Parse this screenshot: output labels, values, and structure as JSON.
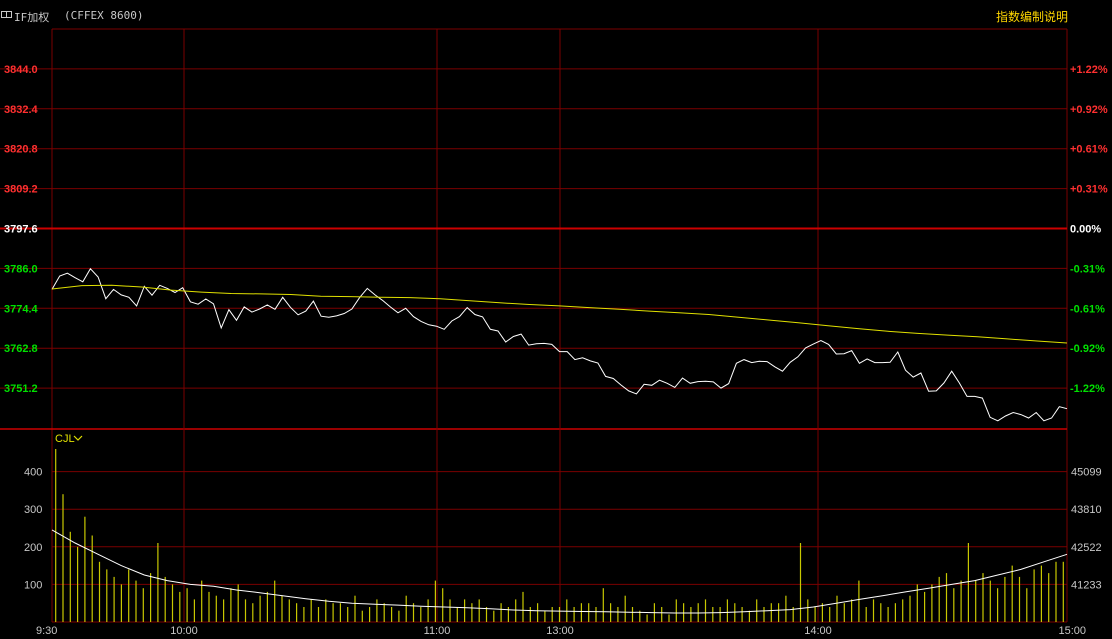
{
  "header": {
    "symbol": "IF加权",
    "exchange": "(CFFEX 8600)",
    "link": "指数编制说明"
  },
  "colors": {
    "up": "#ff3030",
    "down": "#00e000",
    "flat": "#ffffff",
    "grid": "#7a0000",
    "price_line": "#ffffff",
    "avg_line": "#e0e000",
    "volume_bar": "#c8c800",
    "volume_ma": "#ffffff",
    "axis_text": "#c8c8c8"
  },
  "chart_data": [
    {
      "type": "line",
      "x_ticks": [
        "9:30",
        "10:00",
        "11:00",
        "13:00",
        "14:00",
        "15:00"
      ],
      "y_ticks": [
        3844.0,
        3832.4,
        3820.8,
        3809.2,
        3797.6,
        3786.0,
        3774.4,
        3762.8,
        3751.2
      ],
      "y_tick_labels": [
        "3844.0",
        "3832.4",
        "3820.8",
        "3809.2",
        "3797.6",
        "3786.0",
        "3774.4",
        "3762.8",
        "3751.2"
      ],
      "pct_ticks": [
        "+1.22%",
        "+0.92%",
        "+0.61%",
        "+0.31%",
        "0.00%",
        "-0.31%",
        "-0.61%",
        "-0.92%",
        "-1.22%"
      ],
      "base": 3797.6,
      "ylim": [
        3739.6,
        3855.6
      ],
      "grid": true,
      "series": [
        {
          "values": [
            3779.9,
            3783.8,
            3784.6,
            3783.3,
            3782.1,
            3785.9,
            3783.5,
            3777.2,
            3779.9,
            3778.3,
            3777.6,
            3775.1,
            3780.8,
            3778.2,
            3781.1,
            3780.2,
            3779.0,
            3780.4,
            3776.3,
            3775.6,
            3777.1,
            3775.7,
            3768.7,
            3774.0,
            3770.9,
            3774.8,
            3773.3,
            3774.2,
            3775.4,
            3774.1,
            3777.6,
            3774.7,
            3772.5,
            3773.6,
            3776.5,
            3772.1,
            3771.8,
            3772.2,
            3772.9,
            3774.2,
            3777.5,
            3780.2,
            3778.3,
            3776.7,
            3774.8,
            3773.1,
            3774.4,
            3772.0,
            3770.6,
            3769.6,
            3769.2,
            3768.3,
            3770.7,
            3772.0,
            3774.6,
            3772.6,
            3771.9,
            3768.3,
            3767.8,
            3764.6,
            3766.2,
            3766.9,
            3763.7,
            3764.1,
            3764.2,
            3763.9,
            3761.8,
            3761.8,
            3759.5,
            3760.0,
            3759.1,
            3758.5,
            3754.6,
            3754.0,
            3752.1,
            3750.4,
            3749.5,
            3752.3,
            3752.0,
            3753.5,
            3752.6,
            3751.4,
            3754.1,
            3752.6,
            3753.1,
            3753.2,
            3753.0,
            3751.2,
            3752.5,
            3758.4,
            3759.5,
            3758.6,
            3759.0,
            3758.9,
            3757.4,
            3756.1,
            3758.7,
            3760.3,
            3762.9,
            3764.0,
            3765.0,
            3763.9,
            3761.1,
            3761.2,
            3762.1,
            3758.4,
            3759.7,
            3758.6,
            3758.6,
            3758.7,
            3761.7,
            3756.4,
            3754.4,
            3755.6,
            3750.3,
            3750.4,
            3752.7,
            3756.1,
            3752.7,
            3748.8,
            3748.8,
            3748.3,
            3742.7,
            3741.7,
            3743.1,
            3744.1,
            3743.5,
            3742.5,
            3744.1,
            3741.7,
            3742.5,
            3745.8,
            3745.2
          ],
          "note_x": "9:30 to 15:00 (241 minutes)"
        },
        {
          "values": [
            3780.0,
            3781.0,
            3781.1,
            3780.6,
            3779.7,
            3779.1,
            3778.7,
            3778.6,
            3778.4,
            3777.9,
            3777.8,
            3777.6,
            3777.5,
            3777.2,
            3776.6,
            3776.0,
            3775.5,
            3775.1,
            3774.6,
            3774.1,
            3773.6,
            3773.1,
            3772.6,
            3771.8,
            3771.0,
            3770.2,
            3769.3,
            3768.5,
            3767.7,
            3767.1,
            3766.6,
            3766.1,
            3765.5,
            3764.9,
            3764.3
          ]
        }
      ]
    },
    {
      "type": "bar",
      "indicator_label": "CJL",
      "x_ticks": [
        "9:30",
        "10:00",
        "11:00",
        "13:00",
        "14:00",
        "15:00"
      ],
      "y_ticks": [
        400,
        300,
        200,
        100
      ],
      "y_tick_labels": [
        "400",
        "300",
        "200",
        "100"
      ],
      "right_ticks": [
        "45099",
        "43810",
        "42522",
        "41233"
      ],
      "ylim": [
        0,
        500
      ],
      "series": [
        {
          "values": [
            460,
            340,
            240,
            200,
            280,
            230,
            160,
            140,
            120,
            100,
            140,
            110,
            90,
            130,
            210,
            120,
            100,
            80,
            90,
            60,
            110,
            80,
            70,
            60,
            90,
            100,
            60,
            50,
            70,
            80,
            110,
            70,
            60,
            50,
            40,
            60,
            40,
            60,
            50,
            50,
            40,
            70,
            30,
            40,
            60,
            50,
            40,
            30,
            70,
            50,
            40,
            60,
            110,
            90,
            60,
            40,
            60,
            50,
            60,
            40,
            30,
            50,
            40,
            60,
            80,
            40,
            50,
            30,
            40,
            40,
            60,
            40,
            50,
            50,
            40,
            90,
            50,
            40,
            70,
            40,
            30,
            20,
            50,
            40,
            20,
            60,
            50,
            40,
            50,
            60,
            40,
            40,
            60,
            50,
            40,
            30,
            60,
            40,
            50,
            50,
            70,
            40,
            210,
            60,
            40,
            50,
            40,
            70,
            50,
            60,
            110,
            40,
            60,
            50,
            40,
            50,
            60,
            70,
            100,
            80,
            100,
            120,
            130,
            90,
            110,
            210,
            110,
            130,
            110,
            90,
            120,
            150,
            120,
            90,
            140,
            150,
            130,
            160,
            160
          ]
        },
        {
          "values": [
            245,
            210,
            180,
            150,
            125,
            110,
            100,
            95,
            85,
            78,
            70,
            62,
            55,
            50,
            47,
            45,
            42,
            40,
            38,
            35,
            32,
            30,
            29,
            28,
            27,
            26,
            25,
            24,
            24,
            25,
            27,
            30,
            33,
            40,
            50,
            60,
            70,
            80,
            90,
            100,
            110,
            125,
            140,
            160,
            180
          ]
        }
      ]
    }
  ]
}
